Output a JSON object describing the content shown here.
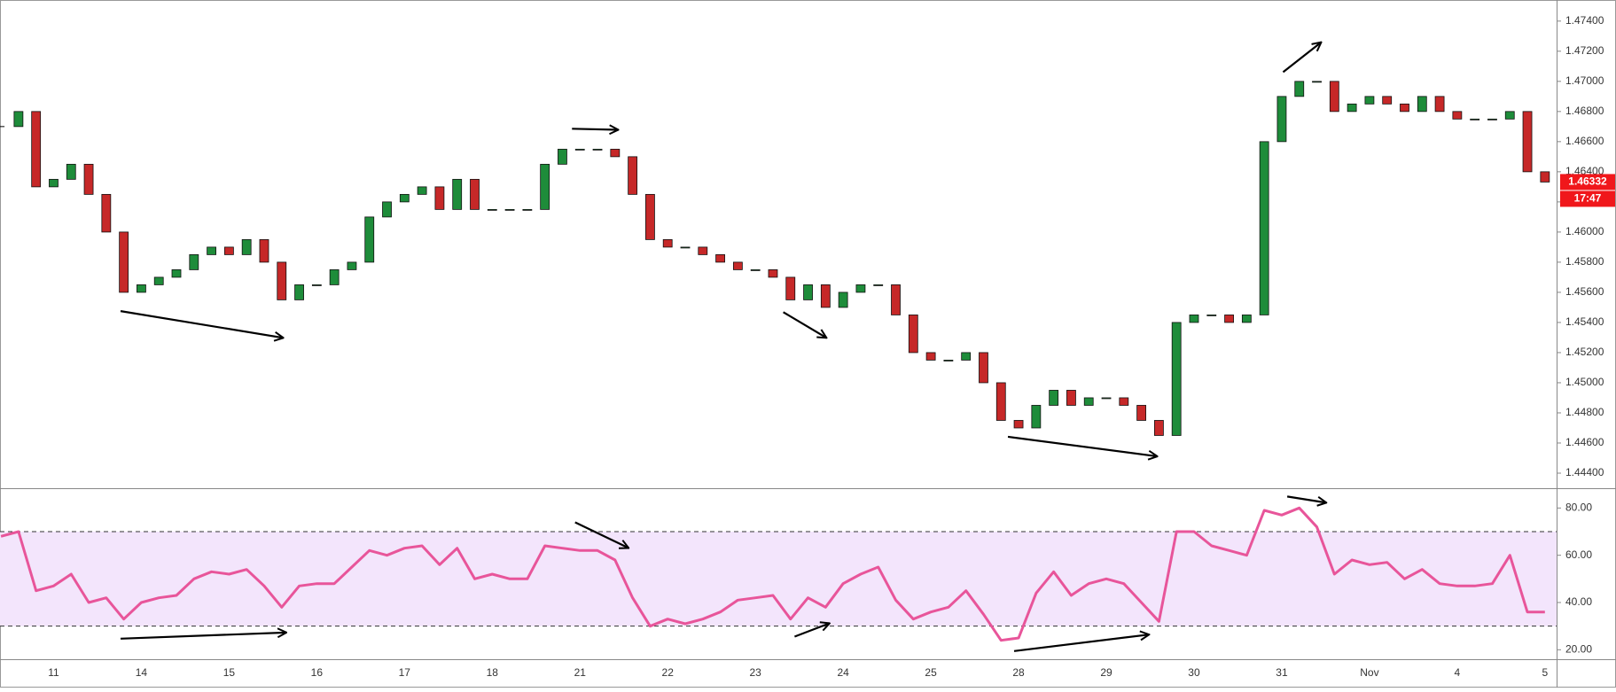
{
  "chart_data": [
    {
      "type": "candlestick",
      "x": [
        -0.6,
        -0.4,
        -0.2,
        0,
        0.2,
        0.4,
        0.6,
        0.8,
        1,
        1.2,
        1.4,
        1.6,
        1.8,
        2,
        2.2,
        2.4,
        2.6,
        2.8,
        3,
        3.2,
        3.4,
        3.6,
        3.8,
        4,
        4.2,
        4.4,
        4.6,
        4.8,
        5,
        5.2,
        5.4,
        5.6,
        5.8,
        6,
        6.2,
        6.4,
        6.6,
        6.8,
        7,
        7.2,
        7.4,
        7.6,
        7.8,
        8,
        8.2,
        8.4,
        8.6,
        8.8,
        9,
        9.2,
        9.4,
        9.6,
        9.8,
        10,
        10.2,
        10.4,
        10.6,
        10.8,
        11,
        11.2,
        11.4,
        11.6,
        11.8,
        12,
        12.2,
        12.4,
        12.6,
        12.8,
        13,
        13.2,
        13.4,
        13.6,
        13.8,
        14,
        14.2,
        14.4,
        14.6,
        14.8,
        15,
        15.2,
        15.4,
        15.6,
        15.8,
        16,
        16.2,
        16.4,
        16.6,
        16.8,
        17
      ],
      "series": [
        {
          "up_color": "#1e8c3a",
          "down_color": "#c62828",
          "values": [
            1.467,
            1.468,
            1.463,
            1.4635,
            1.4645,
            1.4625,
            1.46,
            1.456,
            1.4565,
            1.457,
            1.4575,
            1.4585,
            1.459,
            1.4585,
            1.4595,
            1.458,
            1.4555,
            1.4565,
            1.4565,
            1.4575,
            1.458,
            1.461,
            1.462,
            1.4625,
            1.463,
            1.4615,
            1.4635,
            1.4615,
            1.4615,
            1.4615,
            1.4615,
            1.4645,
            1.4655,
            1.4655,
            1.4655,
            1.465,
            1.4625,
            1.4595,
            1.459,
            1.459,
            1.4585,
            1.458,
            1.4575,
            1.4575,
            1.457,
            1.4555,
            1.4565,
            1.455,
            1.456,
            1.4565,
            1.4565,
            1.4545,
            1.452,
            1.4515,
            1.4515,
            1.452,
            1.45,
            1.4475,
            1.447,
            1.4485,
            1.4495,
            1.4485,
            1.449,
            1.449,
            1.4485,
            1.4475,
            1.4465,
            1.454,
            1.4545,
            1.4545,
            1.454,
            1.4545,
            1.466,
            1.469,
            1.47,
            1.47,
            1.468,
            1.4685,
            1.469,
            1.4685,
            1.468,
            1.469,
            1.468,
            1.4675,
            1.4675,
            1.4675,
            1.468,
            1.464,
            1.46332
          ]
        }
      ],
      "xlim": [
        -0.611,
        17.133
      ],
      "ylim": [
        1.443,
        1.4754
      ],
      "yticks": [
        {
          "value": 1.444,
          "label": "1.44400"
        },
        {
          "value": 1.446,
          "label": "1.44600"
        },
        {
          "value": 1.448,
          "label": "1.44800"
        },
        {
          "value": 1.45,
          "label": "1.45000"
        },
        {
          "value": 1.452,
          "label": "1.45200"
        },
        {
          "value": 1.454,
          "label": "1.45400"
        },
        {
          "value": 1.456,
          "label": "1.45600"
        },
        {
          "value": 1.458,
          "label": "1.45800"
        },
        {
          "value": 1.46,
          "label": "1.46000"
        },
        {
          "value": 1.462,
          "label": "1.46200"
        },
        {
          "value": 1.464,
          "label": "1.46400"
        },
        {
          "value": 1.466,
          "label": "1.46600"
        },
        {
          "value": 1.468,
          "label": "1.46800"
        },
        {
          "value": 1.47,
          "label": "1.47000"
        },
        {
          "value": 1.472,
          "label": "1.47200"
        },
        {
          "value": 1.474,
          "label": "1.47400"
        }
      ],
      "countdown": "17:47",
      "tag_color": "#f0171b"
    },
    {
      "type": "line",
      "x": [
        -0.6,
        -0.4,
        -0.2,
        0,
        0.2,
        0.4,
        0.6,
        0.8,
        1,
        1.2,
        1.4,
        1.6,
        1.8,
        2,
        2.2,
        2.4,
        2.6,
        2.8,
        3,
        3.2,
        3.4,
        3.6,
        3.8,
        4,
        4.2,
        4.4,
        4.6,
        4.8,
        5,
        5.2,
        5.4,
        5.6,
        5.8,
        6,
        6.2,
        6.4,
        6.6,
        6.8,
        7,
        7.2,
        7.4,
        7.6,
        7.8,
        8,
        8.2,
        8.4,
        8.6,
        8.8,
        9,
        9.2,
        9.4,
        9.6,
        9.8,
        10,
        10.2,
        10.4,
        10.6,
        10.8,
        11,
        11.2,
        11.4,
        11.6,
        11.8,
        12,
        12.2,
        12.4,
        12.6,
        12.8,
        13,
        13.2,
        13.4,
        13.6,
        13.8,
        14,
        14.2,
        14.4,
        14.6,
        14.8,
        15,
        15.2,
        15.4,
        15.6,
        15.8,
        16,
        16.2,
        16.4,
        16.6,
        16.8,
        17
      ],
      "series": [
        {
          "color": "#e8559a",
          "values": [
            68,
            70,
            45,
            47,
            52,
            40,
            42,
            33,
            40,
            42,
            43,
            50,
            53,
            52,
            54,
            47,
            38,
            47,
            48,
            48,
            55,
            62,
            60,
            63,
            64,
            56,
            63,
            50,
            52,
            50,
            50,
            64,
            63,
            62,
            62,
            58,
            42,
            30,
            33,
            31,
            33,
            36,
            41,
            42,
            43,
            33,
            42,
            38,
            48,
            52,
            55,
            41,
            33,
            36,
            38,
            45,
            35,
            24,
            25,
            44,
            53,
            43,
            48,
            50,
            48,
            40,
            32,
            70,
            70,
            64,
            62,
            60,
            79,
            77,
            80,
            72,
            52,
            58,
            56,
            57,
            50,
            54,
            48,
            47,
            47,
            48,
            60,
            36,
            36
          ]
        }
      ],
      "xlim": [
        -0.611,
        17.133
      ],
      "ylim": [
        16,
        88
      ],
      "yticks": [
        {
          "value": 20,
          "label": "20.00"
        },
        {
          "value": 40,
          "label": "40.00"
        },
        {
          "value": 60,
          "label": "60.00"
        },
        {
          "value": 80,
          "label": "80.00"
        }
      ],
      "band": [
        30,
        70
      ],
      "band_color": "#f3e5fc",
      "xticks": [
        {
          "value": 0,
          "label": "11"
        },
        {
          "value": 1,
          "label": "14"
        },
        {
          "value": 2,
          "label": "15"
        },
        {
          "value": 3,
          "label": "16"
        },
        {
          "value": 4,
          "label": "17"
        },
        {
          "value": 5,
          "label": "18"
        },
        {
          "value": 6,
          "label": "21"
        },
        {
          "value": 7,
          "label": "22"
        },
        {
          "value": 8,
          "label": "23"
        },
        {
          "value": 9,
          "label": "24"
        },
        {
          "value": 10,
          "label": "25"
        },
        {
          "value": 11,
          "label": "28"
        },
        {
          "value": 12,
          "label": "29"
        },
        {
          "value": 13,
          "label": "30"
        },
        {
          "value": 14,
          "label": "31"
        },
        {
          "value": 15,
          "label": "Nov"
        },
        {
          "value": 16,
          "label": "4"
        },
        {
          "value": 17,
          "label": "5"
        }
      ]
    }
  ]
}
